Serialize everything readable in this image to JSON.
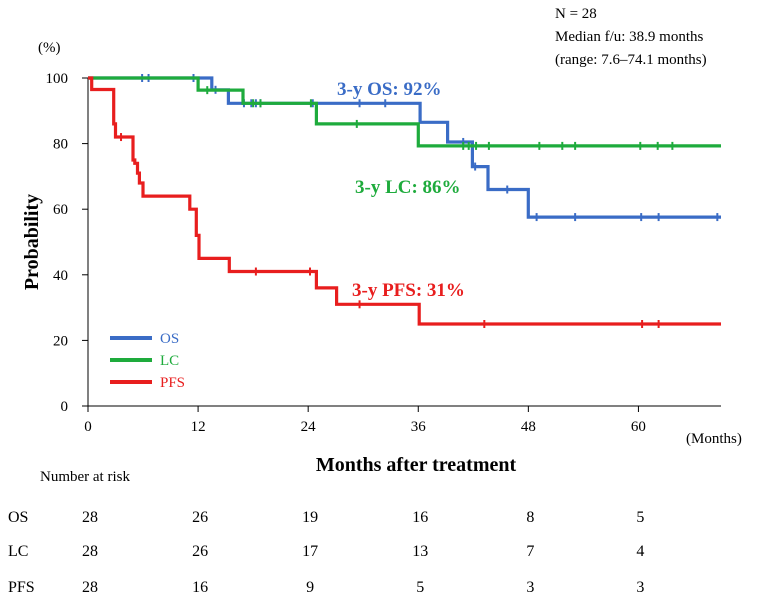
{
  "chart_data": {
    "type": "line",
    "subtype": "kaplan-meier",
    "info": {
      "n": "N = 28",
      "median": "Median f/u: 38.9 months",
      "range": "(range: 7.6–74.1 months)"
    },
    "ylabel": "Probability",
    "yunit": "(%)",
    "xlabel": "Months after treatment",
    "xunit": "(Months)",
    "xlim": [
      0,
      69
    ],
    "ylim": [
      0,
      100
    ],
    "xticks": [
      "0",
      "12",
      "24",
      "36",
      "48",
      "60"
    ],
    "xtick_values": [
      0,
      12,
      24,
      36,
      48,
      60
    ],
    "yticks": [
      "0",
      "20",
      "40",
      "60",
      "80",
      "100"
    ],
    "ytick_values": [
      0,
      20,
      40,
      60,
      80,
      100
    ],
    "series": [
      {
        "name": "OS",
        "color": "#3a6cc6",
        "annotation": "3-y OS: 92%",
        "steps": [
          [
            0,
            100
          ],
          [
            13.5,
            96.4
          ],
          [
            15.3,
            92.3
          ],
          [
            36.2,
            86.5
          ],
          [
            39.2,
            80.5
          ],
          [
            41.9,
            73
          ],
          [
            43.6,
            66
          ],
          [
            48,
            57.6
          ],
          [
            69,
            57.6
          ]
        ],
        "censored": [
          [
            5.9,
            100
          ],
          [
            6.6,
            100
          ],
          [
            11.5,
            100
          ],
          [
            13.9,
            96.4
          ],
          [
            17,
            92.3
          ],
          [
            17.8,
            92.3
          ],
          [
            18.3,
            92.3
          ],
          [
            18.8,
            92.3
          ],
          [
            24.5,
            92.3
          ],
          [
            29.6,
            92.3
          ],
          [
            32.4,
            92.3
          ],
          [
            40.9,
            80.5
          ],
          [
            42.2,
            73
          ],
          [
            45.7,
            66
          ],
          [
            48.9,
            57.6
          ],
          [
            53.1,
            57.6
          ],
          [
            60.3,
            57.6
          ],
          [
            62.2,
            57.6
          ],
          [
            68.6,
            57.6
          ]
        ]
      },
      {
        "name": "LC",
        "color": "#1eab3c",
        "annotation": "3-y LC: 86%",
        "steps": [
          [
            0,
            100
          ],
          [
            12,
            96.3
          ],
          [
            16.9,
            92.3
          ],
          [
            24.9,
            86
          ],
          [
            36,
            79.3
          ],
          [
            69,
            79.3
          ]
        ],
        "censored": [
          [
            13,
            96.3
          ],
          [
            18,
            92.3
          ],
          [
            18.8,
            92.3
          ],
          [
            24.3,
            92.3
          ],
          [
            29.3,
            86
          ],
          [
            40.9,
            79.3
          ],
          [
            41.5,
            79.3
          ],
          [
            42.3,
            79.3
          ],
          [
            43.7,
            79.3
          ],
          [
            49.2,
            79.3
          ],
          [
            51.7,
            79.3
          ],
          [
            53.1,
            79.3
          ],
          [
            60.2,
            79.3
          ],
          [
            62.1,
            79.3
          ],
          [
            63.7,
            79.3
          ]
        ]
      },
      {
        "name": "PFS",
        "color": "#e81e1e",
        "annotation": "3-y PFS: 31%",
        "steps": [
          [
            0,
            100
          ],
          [
            0.4,
            96.5
          ],
          [
            2.8,
            86
          ],
          [
            3,
            82
          ],
          [
            4.9,
            75
          ],
          [
            5.1,
            74
          ],
          [
            5.4,
            71
          ],
          [
            5.6,
            68
          ],
          [
            6,
            64
          ],
          [
            11.1,
            60
          ],
          [
            11.8,
            52
          ],
          [
            12.1,
            45
          ],
          [
            15.4,
            41
          ],
          [
            24.9,
            39
          ],
          [
            24.9,
            36
          ],
          [
            27.1,
            31
          ],
          [
            36.1,
            25
          ],
          [
            69,
            25
          ]
        ],
        "censored": [
          [
            3.6,
            82
          ],
          [
            18.3,
            41
          ],
          [
            24.2,
            41
          ],
          [
            29.6,
            31
          ],
          [
            43.2,
            25
          ],
          [
            60.4,
            25
          ],
          [
            62.2,
            25
          ]
        ]
      }
    ],
    "legend": [
      "OS",
      "LC",
      "PFS"
    ],
    "risk_table": {
      "title": "Number at risk",
      "rows": [
        {
          "label": "OS",
          "values": [
            "28",
            "26",
            "19",
            "16",
            "8",
            "5"
          ]
        },
        {
          "label": "LC",
          "values": [
            "28",
            "26",
            "17",
            "13",
            "7",
            "4"
          ]
        },
        {
          "label": "PFS",
          "values": [
            "28",
            "16",
            "9",
            "5",
            "3",
            "3"
          ]
        }
      ]
    }
  }
}
